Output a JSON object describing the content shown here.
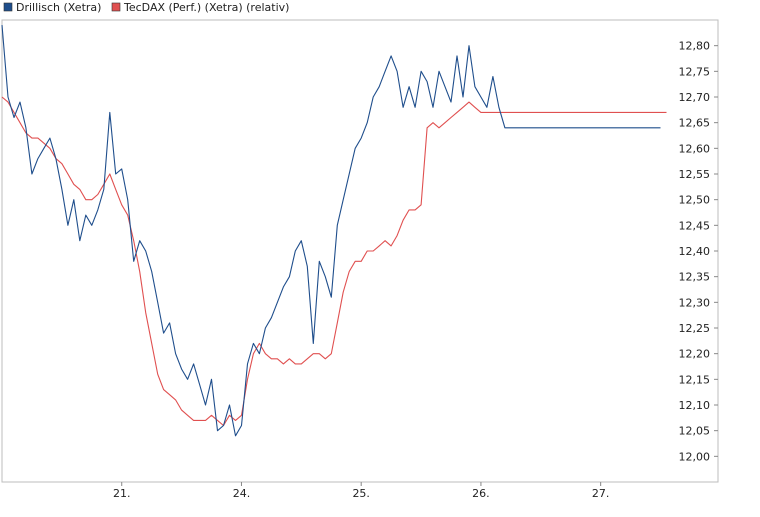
{
  "chart_data": {
    "type": "line",
    "title": "",
    "xlabel": "",
    "ylabel": "",
    "ylim": [
      11.95,
      12.85
    ],
    "y_axis_position": "right",
    "grid": false,
    "legend_placement": "top-left",
    "x_ticks": [
      {
        "label": "21.",
        "x": 1
      },
      {
        "label": "24.",
        "x": 2
      },
      {
        "label": "25.",
        "x": 3
      },
      {
        "label": "26.",
        "x": 4
      },
      {
        "label": "27.",
        "x": 5
      }
    ],
    "xlim": [
      0,
      5.98
    ],
    "y_ticks": [
      "12,00",
      "12,05",
      "12,10",
      "12,15",
      "12,20",
      "12,25",
      "12,30",
      "12,35",
      "12,40",
      "12,45",
      "12,50",
      "12,55",
      "12,60",
      "12,65",
      "12,70",
      "12,75",
      "12,80"
    ],
    "series": [
      {
        "name": "Drillisch (Xetra)",
        "color": "#1f4e8c",
        "x": [
          0,
          0.05,
          0.1,
          0.15,
          0.2,
          0.25,
          0.3,
          0.35,
          0.4,
          0.45,
          0.5,
          0.55,
          0.6,
          0.65,
          0.7,
          0.75,
          0.8,
          0.85,
          0.9,
          0.95,
          1.0,
          1.05,
          1.1,
          1.15,
          1.2,
          1.25,
          1.3,
          1.35,
          1.4,
          1.45,
          1.5,
          1.55,
          1.6,
          1.65,
          1.7,
          1.75,
          1.8,
          1.85,
          1.9,
          1.95,
          2.0,
          2.05,
          2.1,
          2.15,
          2.2,
          2.25,
          2.3,
          2.35,
          2.4,
          2.45,
          2.5,
          2.55,
          2.6,
          2.65,
          2.7,
          2.75,
          2.8,
          2.85,
          2.9,
          2.95,
          3.0,
          3.05,
          3.1,
          3.15,
          3.2,
          3.25,
          3.3,
          3.35,
          3.4,
          3.45,
          3.5,
          3.55,
          3.6,
          3.65,
          3.7,
          3.75,
          3.8,
          3.85,
          3.9,
          3.95,
          4.0,
          4.05,
          4.1,
          4.15,
          4.2,
          4.25,
          4.3,
          4.35,
          4.4,
          4.45,
          4.5,
          4.55,
          4.6,
          4.65,
          4.7,
          4.75,
          4.8,
          4.85,
          4.9,
          4.95,
          5.0,
          5.05,
          5.1,
          5.15,
          5.2,
          5.25,
          5.3,
          5.35,
          5.4,
          5.45,
          5.5
        ],
        "y": [
          12.84,
          12.7,
          12.66,
          12.69,
          12.64,
          12.55,
          12.58,
          12.6,
          12.62,
          12.58,
          12.52,
          12.45,
          12.5,
          12.42,
          12.47,
          12.45,
          12.48,
          12.52,
          12.67,
          12.55,
          12.56,
          12.5,
          12.38,
          12.42,
          12.4,
          12.36,
          12.3,
          12.24,
          12.26,
          12.2,
          12.17,
          12.15,
          12.18,
          12.14,
          12.1,
          12.15,
          12.05,
          12.06,
          12.1,
          12.04,
          12.06,
          12.18,
          12.22,
          12.2,
          12.25,
          12.27,
          12.3,
          12.33,
          12.35,
          12.4,
          12.42,
          12.37,
          12.22,
          12.38,
          12.35,
          12.31,
          12.45,
          12.5,
          12.55,
          12.6,
          12.62,
          12.65,
          12.7,
          12.72,
          12.75,
          12.78,
          12.75,
          12.68,
          12.72,
          12.68,
          12.75,
          12.73,
          12.68,
          12.75,
          12.72,
          12.69,
          12.78,
          12.7,
          12.8,
          12.72,
          12.7,
          12.68,
          12.74,
          12.68,
          12.64,
          12.64,
          12.64,
          12.64,
          12.64,
          12.64,
          12.64,
          12.64,
          12.64,
          12.64,
          12.64,
          12.64,
          12.64,
          12.64,
          12.64,
          12.64,
          12.64,
          12.64,
          12.64,
          12.64,
          12.64,
          12.64,
          12.64,
          12.64,
          12.64,
          12.64,
          12.64
        ]
      },
      {
        "name": "TecDAX (Perf.) (Xetra) (relativ)",
        "color": "#e05050",
        "x": [
          0,
          0.05,
          0.1,
          0.15,
          0.2,
          0.25,
          0.3,
          0.35,
          0.4,
          0.45,
          0.5,
          0.55,
          0.6,
          0.65,
          0.7,
          0.75,
          0.8,
          0.85,
          0.9,
          0.95,
          1.0,
          1.05,
          1.1,
          1.15,
          1.2,
          1.25,
          1.3,
          1.35,
          1.4,
          1.45,
          1.5,
          1.55,
          1.6,
          1.65,
          1.7,
          1.75,
          1.8,
          1.85,
          1.9,
          1.95,
          2.0,
          2.05,
          2.1,
          2.15,
          2.2,
          2.25,
          2.3,
          2.35,
          2.4,
          2.45,
          2.5,
          2.55,
          2.6,
          2.65,
          2.7,
          2.75,
          2.8,
          2.85,
          2.9,
          2.95,
          3.0,
          3.05,
          3.1,
          3.15,
          3.2,
          3.25,
          3.3,
          3.35,
          3.4,
          3.45,
          3.5,
          3.55,
          3.6,
          3.65,
          3.7,
          3.75,
          3.8,
          3.85,
          3.9,
          3.95,
          4.0,
          4.05,
          4.1,
          4.15,
          4.2,
          4.25,
          4.3,
          4.35,
          4.4,
          4.45,
          4.5,
          4.55,
          4.6,
          4.65,
          4.7,
          4.75,
          4.8,
          4.85,
          4.9,
          4.95,
          5.0,
          5.05,
          5.1,
          5.15,
          5.2,
          5.25,
          5.3,
          5.35,
          5.4,
          5.45,
          5.5,
          5.55
        ],
        "y": [
          12.7,
          12.69,
          12.67,
          12.65,
          12.63,
          12.62,
          12.62,
          12.61,
          12.6,
          12.58,
          12.57,
          12.55,
          12.53,
          12.52,
          12.5,
          12.5,
          12.51,
          12.53,
          12.55,
          12.52,
          12.49,
          12.47,
          12.42,
          12.36,
          12.28,
          12.22,
          12.16,
          12.13,
          12.12,
          12.11,
          12.09,
          12.08,
          12.07,
          12.07,
          12.07,
          12.08,
          12.07,
          12.06,
          12.08,
          12.07,
          12.08,
          12.15,
          12.2,
          12.22,
          12.2,
          12.19,
          12.19,
          12.18,
          12.19,
          12.18,
          12.18,
          12.19,
          12.2,
          12.2,
          12.19,
          12.2,
          12.26,
          12.32,
          12.36,
          12.38,
          12.38,
          12.4,
          12.4,
          12.41,
          12.42,
          12.41,
          12.43,
          12.46,
          12.48,
          12.48,
          12.49,
          12.64,
          12.65,
          12.64,
          12.65,
          12.66,
          12.67,
          12.68,
          12.69,
          12.68,
          12.67,
          12.67,
          12.67,
          12.67,
          12.67,
          12.67,
          12.67,
          12.67,
          12.67,
          12.67,
          12.67,
          12.67,
          12.67,
          12.67,
          12.67,
          12.67,
          12.67,
          12.67,
          12.67,
          12.67,
          12.67,
          12.67,
          12.67,
          12.67,
          12.67,
          12.67,
          12.67,
          12.67,
          12.67,
          12.67,
          12.67,
          12.67
        ]
      }
    ]
  }
}
